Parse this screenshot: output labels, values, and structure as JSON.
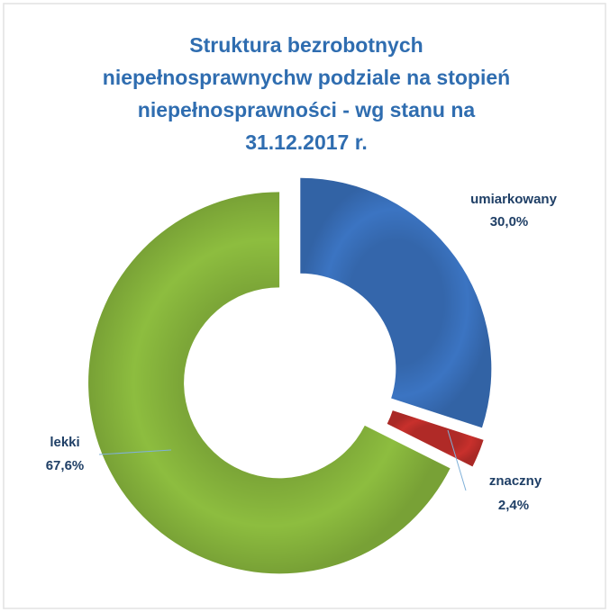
{
  "chart_data": {
    "type": "donut",
    "title": [
      "Struktura bezrobotnych",
      "niepełnosprawnychw podziale na stopień",
      "niepełnosprawności - wg stanu na",
      "31.12.2017 r."
    ],
    "categories": [
      "umiarkowany",
      "znaczny",
      "lekki"
    ],
    "values": [
      30.0,
      2.4,
      67.6
    ],
    "value_labels": [
      "30,0%",
      "2,4%",
      "67,6%"
    ],
    "colors": [
      "#3b74c2",
      "#c8302c",
      "#8dbd3f"
    ]
  }
}
